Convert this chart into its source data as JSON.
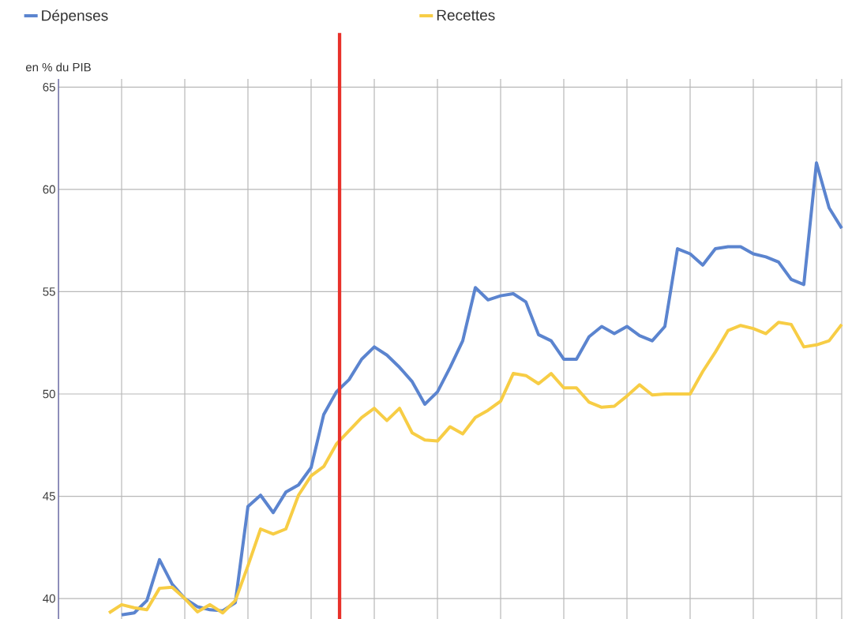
{
  "chart_data": {
    "type": "line",
    "ylabel": "en % du PIB",
    "categories": [
      null,
      null,
      null,
      null,
      null,
      null,
      null,
      null,
      null,
      null,
      null,
      null,
      null,
      null,
      null,
      null,
      null,
      null,
      null,
      null,
      null,
      null,
      null,
      null,
      null,
      null,
      null,
      null,
      null,
      null,
      null,
      null,
      null,
      null,
      null,
      null,
      null,
      null,
      null,
      null,
      null,
      null,
      null,
      null,
      null,
      null,
      null,
      null,
      null,
      null,
      null,
      null,
      null,
      null,
      null,
      null,
      null,
      null,
      null,
      null,
      null,
      null,
      null
    ],
    "ylim": [
      39,
      65.4
    ],
    "yticks": [
      40,
      45,
      50,
      55,
      60,
      65
    ],
    "grid": true,
    "legend": "top",
    "marker": "none",
    "line_style": "solid",
    "series": [
      {
        "name": "Dépenses",
        "color": "#5b84cf",
        "values": [
          null,
          null,
          null,
          null,
          null,
          39.2,
          39.3,
          39.9,
          41.9,
          40.7,
          40.0,
          39.6,
          39.45,
          39.4,
          39.8,
          44.5,
          45.05,
          44.2,
          45.2,
          45.55,
          46.4,
          49.0,
          50.1,
          50.7,
          51.7,
          52.3,
          51.9,
          51.3,
          50.6,
          49.5,
          50.1,
          51.3,
          52.6,
          55.2,
          54.6,
          54.8,
          54.9,
          54.5,
          52.9,
          52.6,
          51.7,
          51.7,
          52.8,
          53.3,
          52.95,
          53.3,
          52.85,
          52.6,
          53.3,
          57.1,
          56.85,
          56.3,
          57.1,
          57.2,
          57.2,
          56.85,
          56.7,
          56.45,
          55.6,
          55.35,
          61.3,
          59.1,
          58.1
        ]
      },
      {
        "name": "Recettes",
        "color": "#f7cd45",
        "values": [
          null,
          null,
          null,
          null,
          39.3,
          39.7,
          39.55,
          39.45,
          40.5,
          40.55,
          40.0,
          39.35,
          39.7,
          39.3,
          39.9,
          41.6,
          43.4,
          43.15,
          43.4,
          45.05,
          46.0,
          46.45,
          47.55,
          48.2,
          48.85,
          49.3,
          48.7,
          49.3,
          48.1,
          47.75,
          47.7,
          48.4,
          48.05,
          48.85,
          49.2,
          49.65,
          51.0,
          50.9,
          50.5,
          51.0,
          50.3,
          50.3,
          49.6,
          49.35,
          49.4,
          49.9,
          50.45,
          49.95,
          50.0,
          50.0,
          50.0,
          51.1,
          52.05,
          53.1,
          53.35,
          53.2,
          52.95,
          53.5,
          53.4,
          52.3,
          52.4,
          52.6,
          53.4
        ]
      }
    ]
  }
}
